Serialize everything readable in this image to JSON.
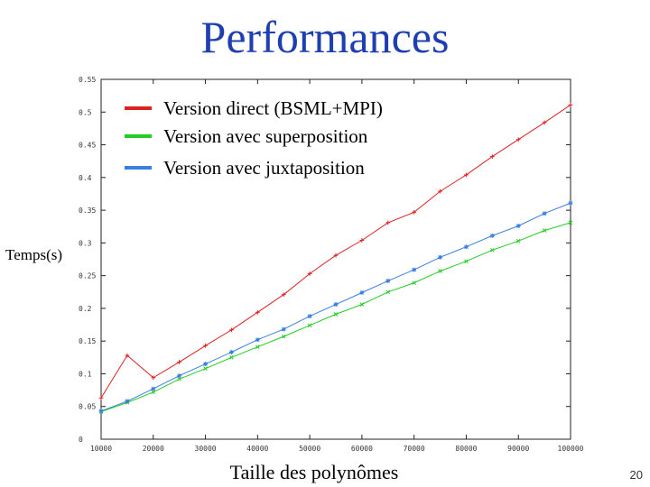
{
  "slide": {
    "title": "Performances",
    "page_number": "20"
  },
  "chart_data": {
    "type": "line",
    "xlabel": "Taille des polynômes",
    "ylabel": "Temps(s)",
    "xlim": [
      10000,
      100000
    ],
    "ylim": [
      0,
      0.55
    ],
    "x_ticks": [
      10000,
      20000,
      30000,
      40000,
      50000,
      60000,
      70000,
      80000,
      90000,
      100000
    ],
    "x_tick_labels": [
      "10000",
      "20000",
      "30000",
      "40000",
      "50000",
      "60000",
      "70000",
      "80000",
      "90000",
      "100000"
    ],
    "y_ticks": [
      0,
      0.05,
      0.1,
      0.15,
      0.2,
      0.25,
      0.3,
      0.35,
      0.4,
      0.45,
      0.5,
      0.55
    ],
    "y_tick_labels": [
      "0",
      "0.05",
      "0.1",
      "0.15",
      "0.2",
      "0.25",
      "0.3",
      "0.35",
      "0.4",
      "0.45",
      "0.5",
      "0.55"
    ],
    "grid": false,
    "legend_position": "top-left",
    "x": [
      10000,
      15000,
      20000,
      25000,
      30000,
      35000,
      40000,
      45000,
      50000,
      55000,
      60000,
      65000,
      70000,
      75000,
      80000,
      85000,
      90000,
      95000,
      100000
    ],
    "series": [
      {
        "name": "Version direct (BSML+MPI)",
        "color": "#dd2222",
        "marker": "plus",
        "values": [
          0.063,
          0.128,
          0.094,
          0.118,
          0.143,
          0.167,
          0.194,
          0.221,
          0.253,
          0.281,
          0.304,
          0.331,
          0.347,
          0.379,
          0.404,
          0.432,
          0.458,
          0.484,
          0.511
        ]
      },
      {
        "name": "Version avec superposition",
        "color": "#22cc22",
        "marker": "x",
        "values": [
          0.042,
          0.056,
          0.072,
          0.092,
          0.108,
          0.125,
          0.141,
          0.157,
          0.174,
          0.191,
          0.206,
          0.225,
          0.239,
          0.257,
          0.272,
          0.289,
          0.303,
          0.319,
          0.331
        ]
      },
      {
        "name": "Version avec juxtaposition",
        "color": "#3a7fe0",
        "marker": "star",
        "values": [
          0.043,
          0.058,
          0.077,
          0.097,
          0.115,
          0.133,
          0.152,
          0.168,
          0.188,
          0.206,
          0.224,
          0.242,
          0.259,
          0.278,
          0.294,
          0.311,
          0.326,
          0.345,
          0.361
        ]
      }
    ]
  }
}
